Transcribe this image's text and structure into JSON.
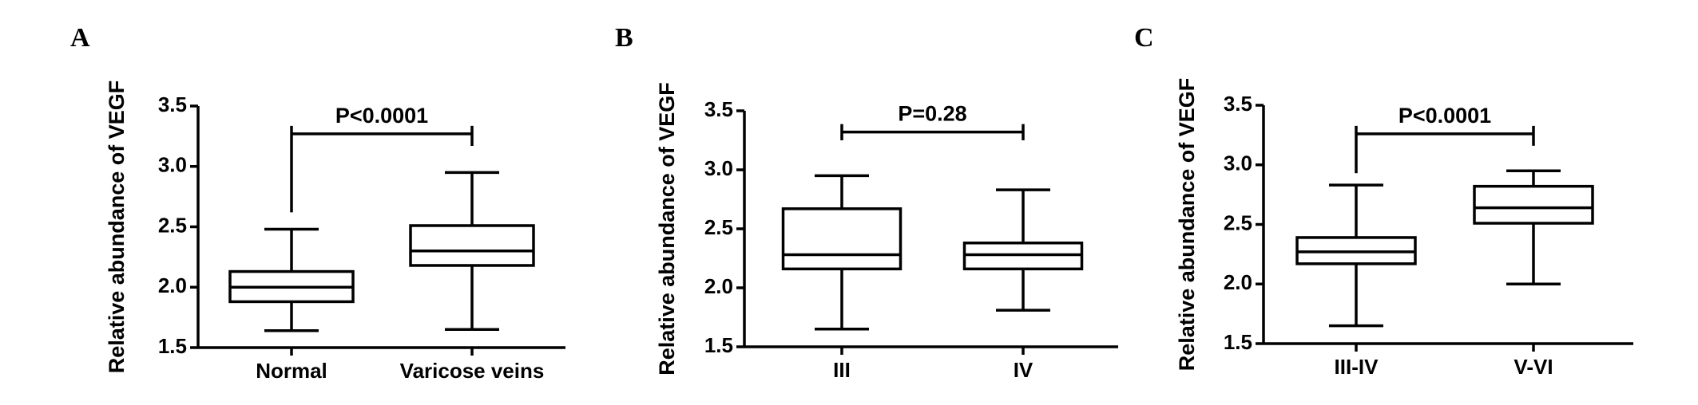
{
  "chart_data": [
    {
      "panel_label": "A",
      "type": "box",
      "ylabel": "Relative abundance of VEGF",
      "ylim": [
        1.5,
        3.5
      ],
      "yticks": [
        "1.5",
        "2.0",
        "2.5",
        "3.0",
        "3.5"
      ],
      "categories": [
        "Normal",
        "Varicose veins"
      ],
      "boxes": [
        {
          "min": 1.64,
          "q1": 1.88,
          "median": 2.0,
          "q3": 2.13,
          "max": 2.48
        },
        {
          "min": 1.65,
          "q1": 2.18,
          "median": 2.3,
          "q3": 2.51,
          "max": 2.95
        }
      ],
      "annotation": {
        "text": "P<0.0001",
        "bar_y": 3.27,
        "left_drop_to": 2.62,
        "right_drop_to": 3.17
      }
    },
    {
      "panel_label": "B",
      "type": "box",
      "ylabel": "Relative abundance of VEGF",
      "ylim": [
        1.5,
        3.5
      ],
      "yticks": [
        "1.5",
        "2.0",
        "2.5",
        "3.0",
        "3.5"
      ],
      "categories": [
        "III",
        "IV"
      ],
      "boxes": [
        {
          "min": 1.65,
          "q1": 2.16,
          "median": 2.28,
          "q3": 2.67,
          "max": 2.95
        },
        {
          "min": 1.81,
          "q1": 2.16,
          "median": 2.28,
          "q3": 2.38,
          "max": 2.83
        }
      ],
      "annotation": {
        "text": "P=0.28",
        "bar_y": 3.32,
        "left_drop_to": 3.25,
        "right_drop_to": 3.25
      }
    },
    {
      "panel_label": "C",
      "type": "box",
      "ylabel": "Relative abundance of VEGF",
      "ylim": [
        1.5,
        3.5
      ],
      "yticks": [
        "1.5",
        "2.0",
        "2.5",
        "3.0",
        "3.5"
      ],
      "categories": [
        "III-IV",
        "V-VI"
      ],
      "boxes": [
        {
          "min": 1.65,
          "q1": 2.17,
          "median": 2.27,
          "q3": 2.39,
          "max": 2.83
        },
        {
          "min": 2.0,
          "q1": 2.51,
          "median": 2.64,
          "q3": 2.82,
          "max": 2.95
        }
      ],
      "annotation": {
        "text": "P<0.0001",
        "bar_y": 3.26,
        "left_drop_to": 2.93,
        "right_drop_to": 3.16
      }
    }
  ]
}
